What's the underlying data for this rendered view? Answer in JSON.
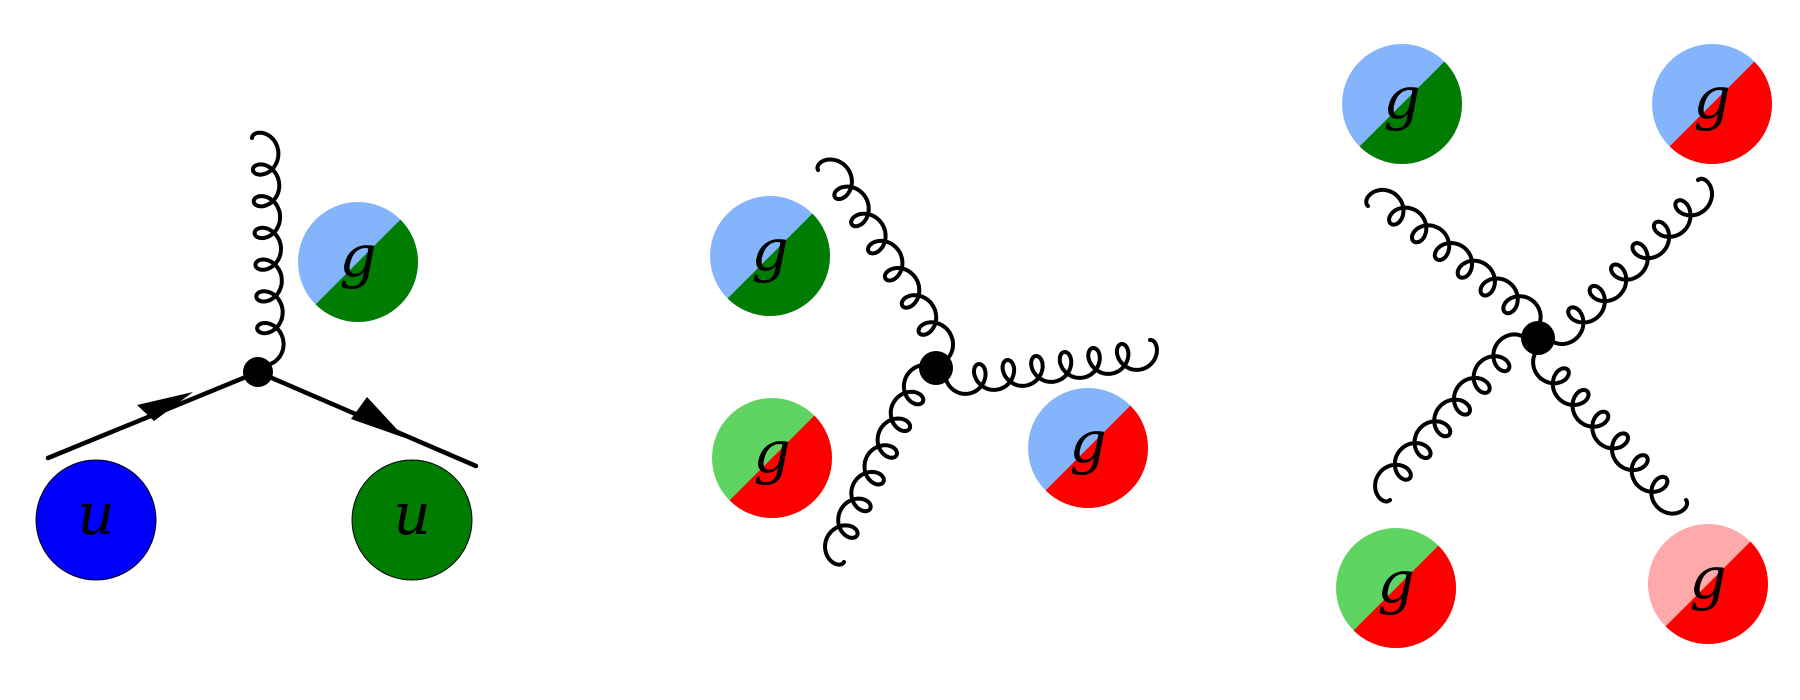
{
  "colors": {
    "blue": "#0000ff",
    "light_blue": "#84b4fb",
    "green": "#007c00",
    "light_green": "#5fd463",
    "red": "#ff0000",
    "pink": "#ffaaaa",
    "line": "#000000",
    "background": "#ffffff"
  },
  "diagrams": [
    {
      "name": "quark-gluon-vertex",
      "particles": [
        {
          "label": "u",
          "colors": [
            "blue"
          ]
        },
        {
          "label": "u",
          "colors": [
            "green"
          ]
        },
        {
          "label": "g",
          "colors": [
            "light_blue",
            "green"
          ]
        }
      ]
    },
    {
      "name": "three-gluon-vertex",
      "particles": [
        {
          "label": "g",
          "colors": [
            "light_blue",
            "green"
          ]
        },
        {
          "label": "g",
          "colors": [
            "light_green",
            "red"
          ]
        },
        {
          "label": "g",
          "colors": [
            "light_blue",
            "red"
          ]
        }
      ]
    },
    {
      "name": "four-gluon-vertex",
      "particles": [
        {
          "label": "g",
          "colors": [
            "light_blue",
            "green"
          ]
        },
        {
          "label": "g",
          "colors": [
            "light_blue",
            "red"
          ]
        },
        {
          "label": "g",
          "colors": [
            "light_green",
            "red"
          ]
        },
        {
          "label": "g",
          "colors": [
            "pink",
            "red"
          ]
        }
      ]
    }
  ]
}
